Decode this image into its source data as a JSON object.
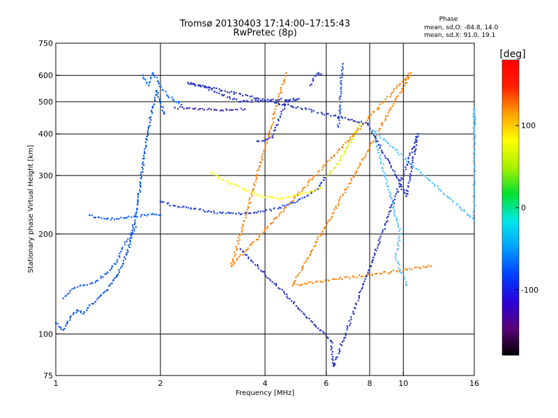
{
  "chart_data": {
    "type": "scatter",
    "title_line1": "Tromsø 20130403 17:14:00–17:15:43",
    "title_line2": "RwPretec (8p)",
    "xlabel": "Frequency [MHz]",
    "ylabel": "Stationary phase Virtual Height [km]",
    "x_scale": "log",
    "y_scale": "log",
    "xlim": [
      1,
      16
    ],
    "ylim": [
      75,
      750
    ],
    "x_ticks": [
      1,
      2,
      4,
      6,
      8,
      10,
      16
    ],
    "x_tick_labels": [
      "1",
      "2",
      "4",
      "6",
      "8",
      "10",
      "16"
    ],
    "x_grid": [
      2,
      4,
      6,
      8,
      10
    ],
    "y_ticks": [
      75,
      100,
      200,
      300,
      400,
      500,
      600,
      750
    ],
    "y_tick_labels": [
      "75",
      "100",
      "200",
      "300",
      "400",
      "500",
      "600",
      "750"
    ],
    "y_grid": [
      100,
      200,
      300,
      400,
      500,
      600
    ],
    "grid": true,
    "stats": {
      "title": "Phase",
      "line_o": "mean, sd,O: -84.8, 14.0",
      "line_x": "mean, sd,X:  91.0, 19.1"
    },
    "colorbar": {
      "label": "[deg]",
      "range": [
        -180,
        180
      ],
      "ticks": [
        -100,
        0,
        100
      ],
      "tick_labels": [
        "-100",
        "0",
        "100"
      ],
      "colormap": [
        "#000000",
        "#5a007a",
        "#2a00d8",
        "#0040ff",
        "#00a0ff",
        "#00e8e8",
        "#00e030",
        "#a8f000",
        "#ffff00",
        "#ffa000",
        "#ff2000",
        "#ff0000"
      ]
    },
    "series": [
      {
        "color": "#0050e0",
        "points": [
          [
            1.0,
            108
          ],
          [
            1.05,
            103
          ],
          [
            1.1,
            112
          ],
          [
            1.15,
            118
          ],
          [
            1.2,
            115
          ],
          [
            1.25,
            122
          ],
          [
            1.3,
            125
          ],
          [
            1.35,
            131
          ],
          [
            1.4,
            135
          ],
          [
            1.45,
            142
          ],
          [
            1.5,
            150
          ],
          [
            1.55,
            160
          ],
          [
            1.6,
            175
          ],
          [
            1.65,
            195
          ],
          [
            1.7,
            230
          ],
          [
            1.75,
            280
          ],
          [
            1.8,
            350
          ],
          [
            1.85,
            420
          ],
          [
            1.9,
            480
          ],
          [
            1.95,
            540
          ],
          [
            2.0,
            500
          ],
          [
            2.05,
            460
          ]
        ]
      },
      {
        "color": "#1060ff",
        "points": [
          [
            1.25,
            228
          ],
          [
            1.3,
            224
          ],
          [
            1.4,
            222
          ],
          [
            1.5,
            222
          ],
          [
            1.6,
            224
          ],
          [
            1.7,
            226
          ],
          [
            1.8,
            228
          ],
          [
            1.9,
            230
          ],
          [
            2.0,
            228
          ]
        ]
      },
      {
        "color": "#2040e8",
        "points": [
          [
            2.0,
            250
          ],
          [
            2.2,
            243
          ],
          [
            2.5,
            238
          ],
          [
            2.8,
            233
          ],
          [
            3.0,
            231
          ],
          [
            3.3,
            230
          ],
          [
            3.6,
            231
          ],
          [
            4.0,
            234
          ],
          [
            4.4,
            240
          ],
          [
            4.8,
            248
          ],
          [
            5.2,
            258
          ],
          [
            5.6,
            272
          ],
          [
            5.9,
            290
          ],
          [
            6.0,
            300
          ]
        ]
      },
      {
        "color": "#ffff00",
        "points": [
          [
            2.8,
            305
          ],
          [
            3.0,
            292
          ],
          [
            3.2,
            283
          ],
          [
            3.5,
            272
          ],
          [
            3.8,
            262
          ],
          [
            4.0,
            258
          ],
          [
            4.3,
            256
          ],
          [
            4.6,
            258
          ],
          [
            5.0,
            262
          ],
          [
            5.4,
            268
          ],
          [
            5.8,
            275
          ]
        ]
      },
      {
        "color": "#e0f000",
        "points": [
          [
            6.0,
            298
          ],
          [
            6.3,
            315
          ],
          [
            6.6,
            335
          ],
          [
            6.9,
            365
          ],
          [
            7.2,
            392
          ],
          [
            7.5,
            430
          ]
        ]
      },
      {
        "color": "#4030c8",
        "points": [
          [
            2.2,
            480
          ],
          [
            2.4,
            478
          ],
          [
            2.6,
            476
          ],
          [
            2.8,
            474
          ],
          [
            3.0,
            472
          ],
          [
            3.2,
            472
          ],
          [
            3.5,
            475
          ]
        ]
      },
      {
        "color": "#2050e0",
        "points": [
          [
            6.5,
            420
          ],
          [
            6.55,
            470
          ],
          [
            6.6,
            520
          ],
          [
            6.6,
            570
          ],
          [
            6.65,
            620
          ],
          [
            6.7,
            650
          ]
        ]
      },
      {
        "color": "#3040d0",
        "points": [
          [
            5.4,
            560
          ],
          [
            5.5,
            580
          ],
          [
            5.6,
            600
          ],
          [
            5.7,
            610
          ],
          [
            5.8,
            605
          ]
        ]
      },
      {
        "color": "#1070ff",
        "points": [
          [
            1.78,
            600
          ],
          [
            1.85,
            560
          ],
          [
            1.9,
            610
          ],
          [
            2.1,
            520
          ],
          [
            2.3,
            490
          ]
        ]
      },
      {
        "color": "#1a60f0",
        "points": [
          [
            1.05,
            128
          ],
          [
            1.1,
            135
          ],
          [
            1.2,
            140
          ],
          [
            1.3,
            143
          ],
          [
            1.4,
            152
          ],
          [
            1.5,
            165
          ],
          [
            1.55,
            180
          ],
          [
            1.6,
            190
          ],
          [
            1.7,
            210
          ]
        ]
      },
      {
        "color": "#ff8000",
        "points": [
          [
            4.6,
            610
          ],
          [
            3.2,
            160
          ],
          [
            10.5,
            610
          ],
          [
            4.8,
            140
          ],
          [
            12,
            160
          ]
        ]
      },
      {
        "color": "#50c0ff",
        "points": [
          [
            16,
            400
          ],
          [
            16,
            480
          ],
          [
            16,
            300
          ],
          [
            16,
            220
          ],
          [
            8.2,
            410
          ],
          [
            9.8,
            200
          ],
          [
            9.5,
            170
          ],
          [
            10.2,
            140
          ]
        ]
      },
      {
        "color": "#2030c0",
        "points": [
          [
            3.8,
            380
          ],
          [
            4.2,
            390
          ],
          [
            4.6,
            500
          ],
          [
            5.0,
            510
          ],
          [
            3.4,
            500
          ],
          [
            2.6,
            560
          ],
          [
            2.4,
            570
          ],
          [
            7.9,
            430
          ],
          [
            10.2,
            260
          ],
          [
            11,
            400
          ],
          [
            8.2,
            170
          ],
          [
            6.3,
            80
          ],
          [
            6.2,
            95
          ],
          [
            3.4,
            180
          ]
        ]
      }
    ]
  }
}
